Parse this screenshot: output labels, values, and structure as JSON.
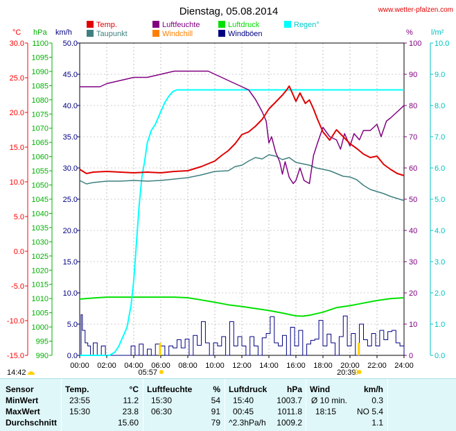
{
  "chart_data": {
    "type": "line",
    "title": "Dienstag, 05.08.2014",
    "source": "www.wetter-pfalzen.com",
    "colors": {
      "temp": "#e00000",
      "taupunkt": "#3f7f7f",
      "luftfeuchte": "#800080",
      "windchill": "#ff8000",
      "luftdruck": "#00e000",
      "windboeen": "#000080",
      "regen": "#00ffff",
      "axis_temp": "#ff0000",
      "axis_hpa": "#00b000",
      "axis_kmh": "#000080",
      "axis_pct": "#800080",
      "axis_rain": "#00c0c0",
      "grid": "#999999"
    },
    "legend": [
      {
        "key": "temp",
        "label": "Temp."
      },
      {
        "key": "luftfeuchte",
        "label": "Luftfeuchte"
      },
      {
        "key": "luftdruck",
        "label": "Luftdruck"
      },
      {
        "key": "regen",
        "label": "Regen°"
      },
      {
        "key": "taupunkt",
        "label": "Taupunkt"
      },
      {
        "key": "windchill",
        "label": "Windchill"
      },
      {
        "key": "windboeen",
        "label": "Windböen"
      }
    ],
    "axes": {
      "x": {
        "ticks": [
          "00:00",
          "02:00",
          "04:00",
          "06:00",
          "08:00",
          "10:00",
          "12:00",
          "14:00",
          "16:00",
          "18:00",
          "20:00",
          "22:00",
          "24:00"
        ],
        "range": [
          0,
          24
        ]
      },
      "temp": {
        "unit": "°C",
        "range": [
          -15,
          30
        ],
        "ticks": [
          "30.0",
          "25.0",
          "20.0",
          "15.0",
          "10.0",
          "5.0",
          "0.0",
          "-5.0",
          "-10.0",
          "-15.0"
        ]
      },
      "hpa": {
        "unit": "hPa",
        "range": [
          990,
          1100
        ],
        "ticks": [
          "1100",
          "1095",
          "1090",
          "1085",
          "1080",
          "1075",
          "1070",
          "1065",
          "1060",
          "1055",
          "1050",
          "1045",
          "1040",
          "1035",
          "1030",
          "1025",
          "1020",
          "1015",
          "1010",
          "1005",
          "1000",
          "995",
          "990"
        ]
      },
      "kmh": {
        "unit": "km/h",
        "range": [
          0,
          50
        ],
        "ticks": [
          "50.0",
          "45.0",
          "40.0",
          "35.0",
          "30.0",
          "25.0",
          "20.0",
          "15.0",
          "10.0",
          "5.0",
          "0.0"
        ]
      },
      "pct": {
        "unit": "%",
        "range": [
          0,
          100
        ],
        "ticks": [
          "100",
          "90",
          "80",
          "70",
          "60",
          "50",
          "40",
          "30",
          "20",
          "10",
          "0"
        ]
      },
      "rain": {
        "unit": "l/m²",
        "range": [
          0,
          10
        ],
        "ticks": [
          "10.0",
          "9.0",
          "8.0",
          "7.0",
          "6.0",
          "5.0",
          "4.0",
          "3.0",
          "2.0",
          "1.0",
          "0.0"
        ]
      }
    },
    "sun": {
      "rise": "05:57",
      "set": "20:39",
      "left": "14:42",
      "right": "9"
    },
    "series": [
      {
        "key": "temp",
        "name": "Temp.",
        "axis": "temp",
        "x": [
          0,
          0.5,
          1,
          2,
          3,
          4,
          5,
          6,
          7,
          8,
          9,
          10,
          10.5,
          11,
          11.5,
          12,
          12.5,
          13,
          13.5,
          14,
          14.5,
          15,
          15.3,
          15.5,
          15.8,
          16,
          16.3,
          16.7,
          17,
          17.3,
          17.6,
          18,
          18.5,
          19,
          19.5,
          20,
          20.5,
          21,
          21.5,
          22,
          22.5,
          23,
          23.5,
          24
        ],
        "y": [
          11.8,
          11.2,
          11.4,
          11.5,
          11.4,
          11.3,
          11.4,
          11.3,
          11.5,
          11.6,
          12.2,
          13.0,
          13.8,
          14.5,
          15.5,
          16.8,
          17.2,
          18.0,
          19.0,
          20.5,
          21.5,
          22.5,
          23.2,
          23.8,
          22.5,
          21.6,
          22.8,
          21.3,
          21.8,
          20.5,
          19.0,
          17.2,
          16.0,
          17.5,
          16.5,
          15.5,
          14.8,
          14.0,
          13.5,
          13.7,
          12.5,
          11.8,
          11.2,
          10.9
        ]
      },
      {
        "key": "taupunkt",
        "name": "Taupunkt",
        "axis": "temp",
        "x": [
          0,
          0.5,
          1,
          2,
          3,
          4,
          5,
          6,
          7,
          8,
          9,
          10,
          11,
          11.5,
          12,
          12.5,
          13,
          13.5,
          14,
          14.5,
          15,
          15.5,
          16,
          16.5,
          17,
          17.5,
          18,
          18.5,
          19,
          19.5,
          20,
          20.5,
          21,
          21.5,
          22,
          22.5,
          23,
          23.5,
          24
        ],
        "y": [
          10.2,
          9.7,
          9.9,
          10.1,
          10.1,
          10.2,
          10.1,
          10.2,
          10.4,
          10.6,
          11.0,
          11.5,
          11.6,
          12.2,
          12.4,
          13.0,
          13.5,
          13.3,
          13.9,
          13.7,
          13.2,
          13.5,
          12.8,
          12.6,
          12.4,
          12.0,
          11.8,
          11.6,
          11.2,
          10.8,
          10.7,
          10.3,
          9.5,
          8.9,
          8.6,
          8.3,
          7.9,
          7.6,
          7.3
        ]
      },
      {
        "key": "luftfeuchte",
        "name": "Luftfeuchte",
        "axis": "pct",
        "x": [
          0,
          1,
          1.5,
          2,
          3,
          4,
          5,
          6,
          7,
          8,
          9,
          9.5,
          10,
          10.5,
          11,
          11.5,
          12,
          12.5,
          13,
          13.5,
          13.8,
          14,
          14.2,
          14.5,
          14.8,
          15,
          15.2,
          15.5,
          15.8,
          16,
          16.3,
          16.6,
          17,
          17.3,
          17.6,
          18,
          18.5,
          19,
          19.3,
          19.6,
          20,
          20.3,
          20.7,
          21,
          21.5,
          22,
          22.3,
          22.7,
          23,
          23.5,
          24
        ],
        "y": [
          86,
          86,
          86,
          87,
          88,
          89,
          89,
          90,
          91,
          91,
          91,
          91,
          90,
          89,
          88,
          87,
          86,
          85,
          82,
          78,
          75,
          68,
          70,
          65,
          62,
          58,
          62,
          57,
          55,
          56,
          60,
          56,
          55,
          64,
          68,
          73,
          70,
          69,
          66,
          71,
          67,
          71,
          69,
          72,
          72,
          74,
          70,
          75,
          76,
          78,
          80
        ]
      },
      {
        "key": "luftdruck",
        "name": "Luftdruck",
        "axis": "hpa",
        "x": [
          0,
          1,
          2,
          3,
          4,
          5,
          6,
          7,
          8,
          9,
          10,
          11,
          12,
          13,
          14,
          15,
          15.5,
          16,
          16.5,
          17,
          18,
          19,
          20,
          21,
          22,
          23,
          24
        ],
        "y": [
          1009.8,
          1010.2,
          1010.5,
          1010.5,
          1010.5,
          1010.5,
          1010.5,
          1010.5,
          1010.3,
          1009.5,
          1008.7,
          1007.8,
          1007.2,
          1006.5,
          1005.8,
          1004.9,
          1004.4,
          1003.9,
          1003.8,
          1004.1,
          1005.2,
          1006.8,
          1007.5,
          1008.4,
          1009.3,
          1010.0,
          1010.3
        ]
      },
      {
        "key": "windboeen",
        "name": "Windböen",
        "axis": "kmh",
        "x": [
          0,
          0.1,
          0.2,
          0.4,
          0.6,
          0.8,
          1,
          1.3,
          1.6,
          1.9,
          2.2,
          2.6,
          3,
          3.4,
          3.8,
          4.1,
          4.4,
          4.7,
          5,
          5.3,
          5.6,
          6,
          6.3,
          6.6,
          6.9,
          7.2,
          7.5,
          7.8,
          8.1,
          8.4,
          8.7,
          9,
          9.3,
          9.6,
          9.9,
          10.2,
          10.5,
          10.8,
          11.1,
          11.4,
          11.7,
          12,
          12.3,
          12.6,
          12.9,
          13.2,
          13.5,
          13.8,
          14.1,
          14.4,
          14.7,
          15,
          15.3,
          15.6,
          15.9,
          16.2,
          16.5,
          16.8,
          17.1,
          17.4,
          17.7,
          18,
          18.3,
          18.6,
          18.9,
          19.2,
          19.5,
          19.8,
          20.1,
          20.4,
          20.7,
          21,
          21.3,
          21.6,
          21.9,
          22.2,
          22.5,
          22.8,
          23.1,
          23.4,
          23.7,
          24
        ],
        "y": [
          0,
          6.5,
          4,
          2,
          1.5,
          0,
          2,
          0,
          1.5,
          0,
          0,
          0,
          0,
          0,
          1.5,
          0,
          1.8,
          0,
          1,
          0,
          1.8,
          1.5,
          0,
          1.5,
          1.2,
          2.5,
          1.2,
          2.6,
          0,
          3.2,
          1.6,
          5.4,
          2,
          0,
          2,
          1.5,
          3,
          0,
          5.4,
          1.5,
          3,
          1.5,
          0,
          3,
          1.5,
          0,
          2.8,
          3.5,
          6.2,
          2,
          1.5,
          3.2,
          0,
          4.5,
          1.5,
          4,
          0,
          1.8,
          2.4,
          2.6,
          5.6,
          1.5,
          3.4,
          2,
          0,
          3,
          6.3,
          1.5,
          3.5,
          0,
          5,
          2.5,
          1.5,
          3.5,
          1.5,
          4,
          2.5,
          3.8,
          4,
          2,
          1.5,
          0
        ]
      },
      {
        "key": "regen",
        "name": "Regen°",
        "axis": "rain",
        "x": [
          0,
          2.2,
          2.6,
          2.9,
          3.2,
          3.5,
          3.8,
          4.0,
          4.2,
          4.4,
          4.6,
          4.8,
          5.0,
          5.3,
          5.6,
          6.0,
          6.3,
          6.6,
          6.9,
          7.2,
          7.5,
          8.0,
          10,
          12,
          14,
          16,
          18,
          20,
          22,
          24
        ],
        "y": [
          0,
          0,
          0.1,
          0.3,
          0.6,
          0.9,
          1.6,
          2.4,
          3.6,
          4.8,
          5.7,
          6.2,
          6.8,
          7.2,
          7.4,
          7.8,
          8.1,
          8.3,
          8.45,
          8.5,
          8.5,
          8.5,
          8.5,
          8.5,
          8.5,
          8.5,
          8.5,
          8.5,
          8.5,
          8.5
        ]
      }
    ]
  },
  "stats": {
    "headers": {
      "sensor": "Sensor",
      "temp": "Temp.",
      "temp_unit": "°C",
      "hum": "Luftfeuchte",
      "hum_unit": "%",
      "press": "Luftdruck",
      "press_unit": "hPa",
      "wind": "Wind",
      "wind_unit": "km/h"
    },
    "rows": [
      {
        "label": "MinWert",
        "temp_time": "23:55",
        "temp_val": "11.2",
        "hum_time": "15:30",
        "hum_val": "54",
        "press_time": "15:40",
        "press_val": "1003.7",
        "wind_label": "Ø 10 min.",
        "wind_val": "0.3"
      },
      {
        "label": "MaxWert",
        "temp_time": "15:30",
        "temp_val": "23.8",
        "hum_time": "06:30",
        "hum_val": "91",
        "press_time": "00:45",
        "press_val": "1011.8",
        "wind_label": "18:15",
        "wind_val": "NO 5.4"
      },
      {
        "label": "Durchschnitt",
        "temp_time": "",
        "temp_val": "15.60",
        "hum_time": "",
        "hum_val": "79",
        "press_time": "^2.3hPa/h",
        "press_val": "1009.2",
        "wind_label": "",
        "wind_val": "1.1"
      }
    ]
  }
}
